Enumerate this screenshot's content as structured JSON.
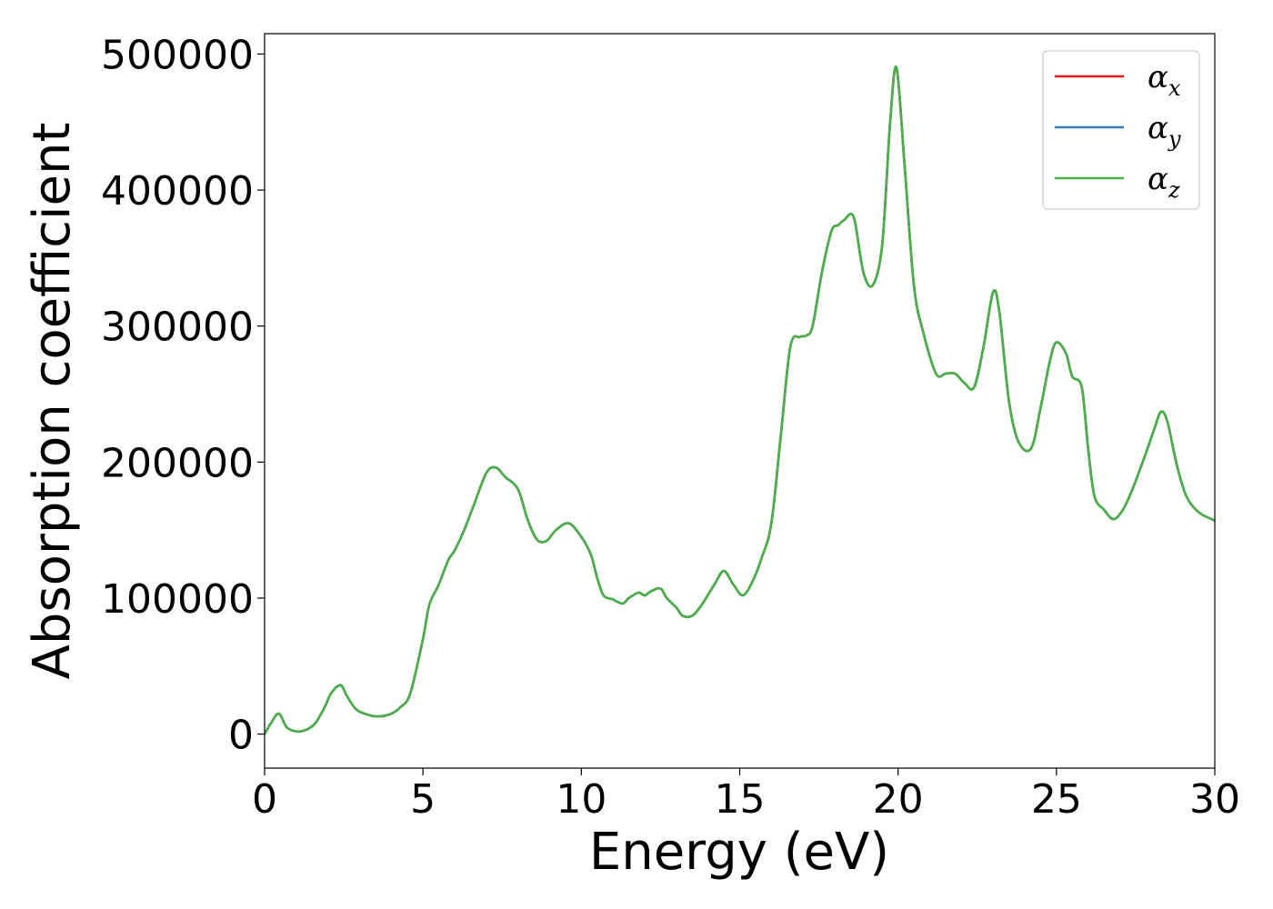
{
  "chart_data": {
    "type": "line",
    "title": "",
    "xlabel": "Energy (eV)",
    "ylabel": "Absorption coefficient",
    "xlim": [
      0,
      30
    ],
    "ylim": [
      -25000,
      515000
    ],
    "xticks": [
      0,
      5,
      10,
      15,
      20,
      25,
      30
    ],
    "yticks": [
      0,
      100000,
      200000,
      300000,
      400000,
      500000
    ],
    "grid": false,
    "legend_position": "top-right",
    "x": [
      0,
      0.2,
      0.45,
      0.7,
      1.0,
      1.3,
      1.6,
      1.9,
      2.1,
      2.4,
      2.6,
      2.9,
      3.3,
      3.6,
      4.0,
      4.3,
      4.6,
      5.0,
      5.2,
      5.5,
      5.8,
      6.0,
      6.3,
      6.6,
      7.0,
      7.3,
      7.6,
      8.0,
      8.3,
      8.6,
      8.9,
      9.2,
      9.6,
      10.0,
      10.3,
      10.5,
      10.7,
      11.0,
      11.3,
      11.5,
      11.8,
      12.0,
      12.2,
      12.5,
      12.7,
      13.0,
      13.2,
      13.5,
      13.8,
      14.2,
      14.5,
      14.8,
      15.1,
      15.4,
      15.7,
      16.0,
      16.3,
      16.6,
      16.9,
      17.1,
      17.3,
      17.6,
      17.9,
      18.1,
      18.3,
      18.6,
      18.9,
      19.2,
      19.5,
      19.75,
      19.95,
      20.2,
      20.5,
      20.8,
      21.2,
      21.5,
      21.8,
      22.1,
      22.4,
      22.7,
      23.0,
      23.2,
      23.5,
      23.8,
      24.2,
      24.5,
      24.8,
      25.0,
      25.3,
      25.5,
      25.8,
      26.0,
      26.2,
      26.5,
      26.8,
      27.1,
      27.4,
      27.8,
      28.1,
      28.3,
      28.5,
      28.8,
      29.1,
      29.5,
      30.0
    ],
    "series": [
      {
        "name": "α_x",
        "symbol": "α",
        "subscript": "x",
        "color": "#e41a1c",
        "values": [
          0,
          8000,
          15000,
          5000,
          2000,
          3000,
          8000,
          20000,
          30000,
          36000,
          28000,
          18000,
          14000,
          13000,
          15000,
          20000,
          30000,
          70000,
          95000,
          110000,
          128000,
          135000,
          150000,
          168000,
          192000,
          196000,
          189000,
          180000,
          158000,
          143000,
          142000,
          150000,
          155000,
          145000,
          132000,
          115000,
          102000,
          99000,
          96000,
          100000,
          104000,
          102000,
          105000,
          107000,
          100000,
          93000,
          87000,
          87000,
          95000,
          110000,
          120000,
          110000,
          102000,
          112000,
          130000,
          155000,
          220000,
          285000,
          292000,
          293000,
          300000,
          340000,
          370000,
          374000,
          378000,
          380000,
          340000,
          330000,
          360000,
          450000,
          490000,
          420000,
          330000,
          295000,
          265000,
          265000,
          265000,
          258000,
          255000,
          285000,
          325000,
          310000,
          245000,
          215000,
          210000,
          240000,
          275000,
          288000,
          280000,
          263000,
          255000,
          210000,
          175000,
          165000,
          158000,
          165000,
          180000,
          205000,
          225000,
          237000,
          230000,
          198000,
          175000,
          163000,
          157000
        ]
      },
      {
        "name": "α_y",
        "symbol": "α",
        "subscript": "y",
        "color": "#377eb8",
        "values": [
          0,
          8000,
          15000,
          5000,
          2000,
          3000,
          8000,
          20000,
          30000,
          36000,
          28000,
          18000,
          14000,
          13000,
          15000,
          20000,
          30000,
          70000,
          95000,
          110000,
          128000,
          135000,
          150000,
          168000,
          192000,
          196000,
          189000,
          180000,
          158000,
          143000,
          142000,
          150000,
          155000,
          145000,
          132000,
          115000,
          102000,
          99000,
          96000,
          100000,
          104000,
          102000,
          105000,
          107000,
          100000,
          93000,
          87000,
          87000,
          95000,
          110000,
          120000,
          110000,
          102000,
          112000,
          130000,
          155000,
          220000,
          285000,
          292000,
          293000,
          300000,
          340000,
          370000,
          374000,
          378000,
          380000,
          340000,
          330000,
          360000,
          450000,
          490000,
          420000,
          330000,
          295000,
          265000,
          265000,
          265000,
          258000,
          255000,
          285000,
          325000,
          310000,
          245000,
          215000,
          210000,
          240000,
          275000,
          288000,
          280000,
          263000,
          255000,
          210000,
          175000,
          165000,
          158000,
          165000,
          180000,
          205000,
          225000,
          237000,
          230000,
          198000,
          175000,
          163000,
          157000
        ]
      },
      {
        "name": "α_z",
        "symbol": "α",
        "subscript": "z",
        "color": "#4daf4a",
        "values": [
          0,
          8000,
          15000,
          5000,
          2000,
          3000,
          8000,
          20000,
          30000,
          36000,
          28000,
          18000,
          14000,
          13000,
          15000,
          20000,
          30000,
          70000,
          95000,
          110000,
          128000,
          135000,
          150000,
          168000,
          192000,
          196000,
          189000,
          180000,
          158000,
          143000,
          142000,
          150000,
          155000,
          145000,
          132000,
          115000,
          102000,
          99000,
          96000,
          100000,
          104000,
          102000,
          105000,
          107000,
          100000,
          93000,
          87000,
          87000,
          95000,
          110000,
          120000,
          110000,
          102000,
          112000,
          130000,
          155000,
          220000,
          285000,
          292000,
          293000,
          300000,
          340000,
          370000,
          374000,
          378000,
          380000,
          340000,
          330000,
          360000,
          450000,
          490000,
          420000,
          330000,
          295000,
          265000,
          265000,
          265000,
          258000,
          255000,
          285000,
          325000,
          310000,
          245000,
          215000,
          210000,
          240000,
          275000,
          288000,
          280000,
          263000,
          255000,
          210000,
          175000,
          165000,
          158000,
          165000,
          180000,
          205000,
          225000,
          237000,
          230000,
          198000,
          175000,
          163000,
          157000
        ]
      }
    ]
  }
}
